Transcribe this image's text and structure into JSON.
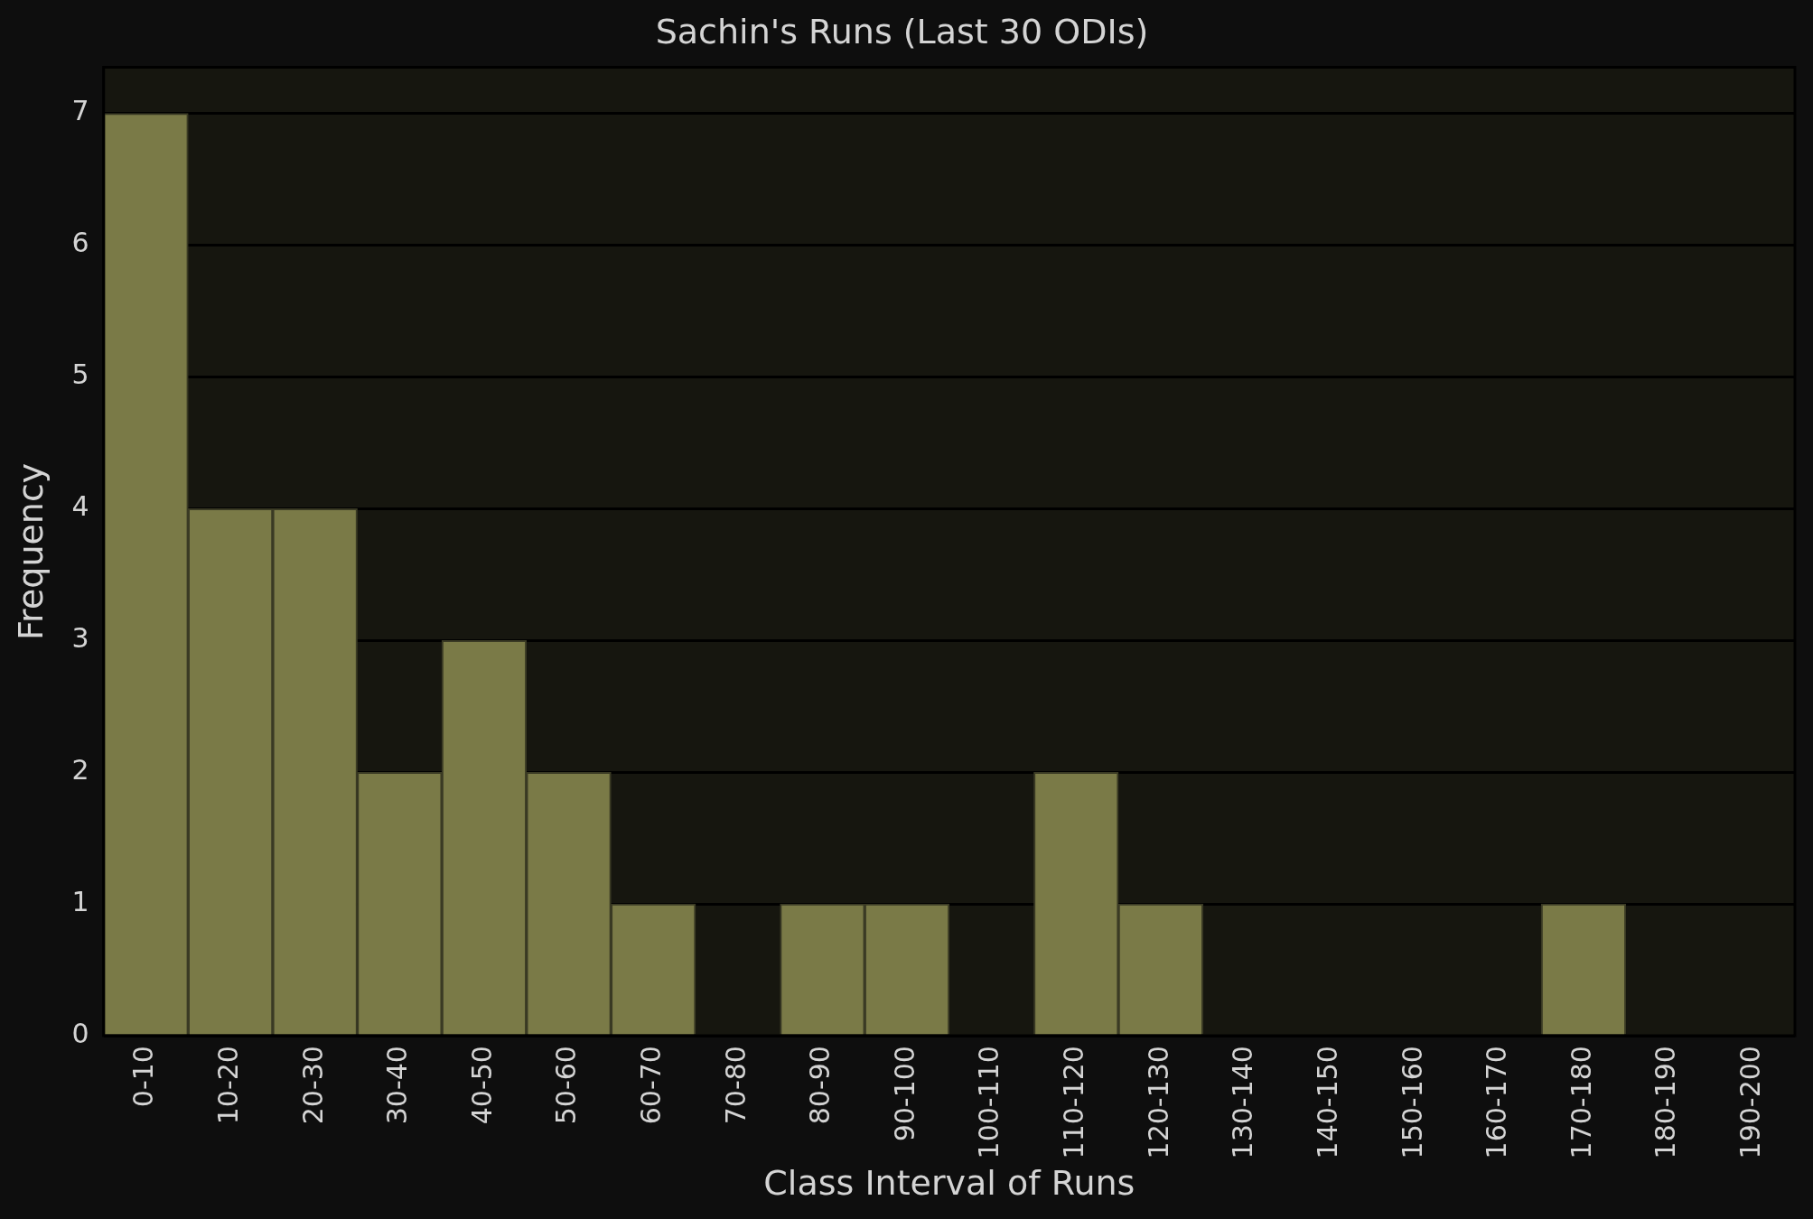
{
  "chart_data": {
    "type": "bar",
    "title": "Sachin's Runs (Last 30 ODIs)",
    "xlabel": "Class Interval of Runs",
    "ylabel": "Frequency",
    "categories": [
      "0-10",
      "10-20",
      "20-30",
      "30-40",
      "40-50",
      "50-60",
      "60-70",
      "70-80",
      "80-90",
      "90-100",
      "100-110",
      "110-120",
      "120-130",
      "130-140",
      "140-150",
      "150-160",
      "160-170",
      "170-180",
      "180-190",
      "190-200"
    ],
    "values": [
      7,
      4,
      4,
      2,
      3,
      2,
      1,
      0,
      1,
      1,
      0,
      2,
      1,
      0,
      0,
      0,
      0,
      1,
      0,
      0
    ],
    "color": "#7a7a47",
    "ylim": [
      0,
      7.35
    ],
    "yticks": [
      0,
      1,
      2,
      3,
      4,
      5,
      6,
      7
    ],
    "grid": "y",
    "legend": false
  }
}
